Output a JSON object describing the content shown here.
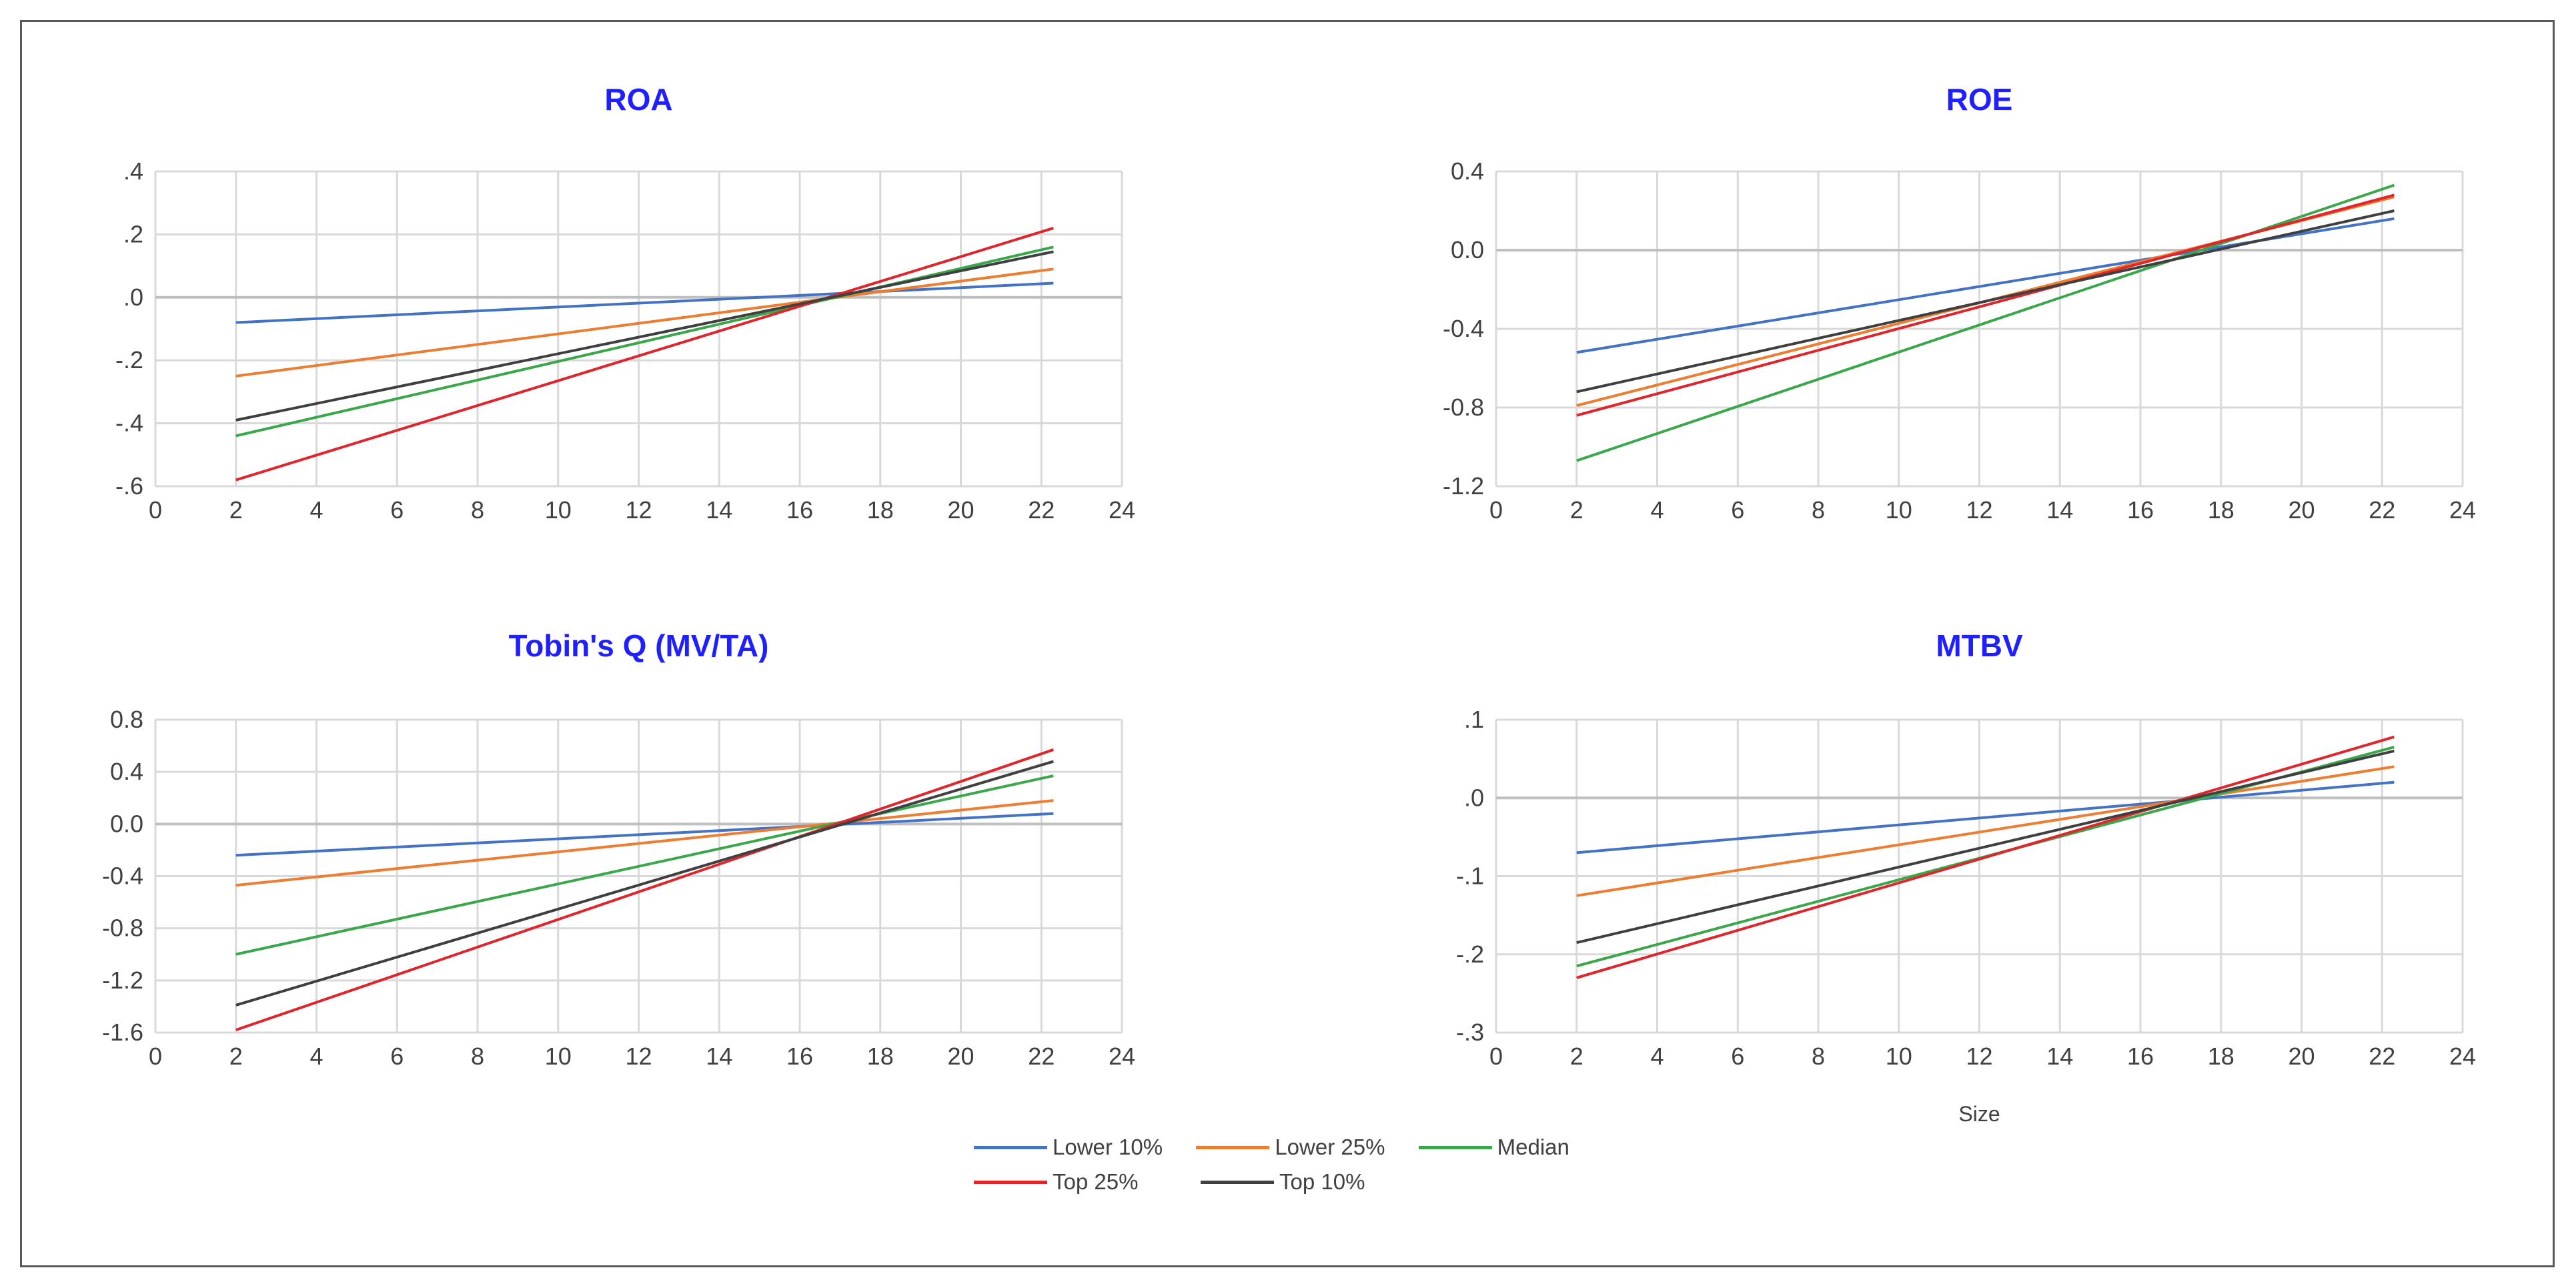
{
  "colors": {
    "title": "#1f1fff",
    "Lower 10%": "#4472c4",
    "Lower 25%": "#ed7d31",
    "Median": "#3aa84a",
    "Top 25%": "#e0262d",
    "Top 10%": "#404040"
  },
  "legend": [
    {
      "label": "Lower 10%"
    },
    {
      "label": "Lower 25%"
    },
    {
      "label": "Median"
    },
    {
      "label": "Top 25%"
    },
    {
      "label": "Top 10%"
    }
  ],
  "chart_data": [
    {
      "type": "line",
      "title": "ROA",
      "xlabel": "",
      "ylabel": "",
      "xlim": [
        0,
        24
      ],
      "xticks": [
        "0",
        "2",
        "4",
        "6",
        "8",
        "10",
        "12",
        "14",
        "16",
        "18",
        "20",
        "22",
        "24"
      ],
      "ylim": [
        -0.6,
        0.4
      ],
      "yticks": [
        {
          "v": 0.4,
          "label": ".4"
        },
        {
          "v": 0.2,
          "label": ".2"
        },
        {
          "v": 0.0,
          "label": ".0"
        },
        {
          "v": -0.2,
          "label": "-.2"
        },
        {
          "v": -0.4,
          "label": "-.4"
        },
        {
          "v": -0.6,
          "label": "-.6"
        }
      ],
      "grid": true,
      "series": [
        {
          "name": "Lower 10%",
          "x": [
            2,
            22.3
          ],
          "values": [
            -0.08,
            0.045
          ]
        },
        {
          "name": "Lower 25%",
          "x": [
            2,
            22.3
          ],
          "values": [
            -0.25,
            0.09
          ]
        },
        {
          "name": "Median",
          "x": [
            2,
            22.3
          ],
          "values": [
            -0.44,
            0.16
          ]
        },
        {
          "name": "Top 25%",
          "x": [
            2,
            22.3
          ],
          "values": [
            -0.58,
            0.22
          ]
        },
        {
          "name": "Top 10%",
          "x": [
            2,
            22.3
          ],
          "values": [
            -0.39,
            0.145
          ]
        }
      ]
    },
    {
      "type": "line",
      "title": "ROE",
      "xlabel": "",
      "ylabel": "",
      "xlim": [
        0,
        24
      ],
      "xticks": [
        "0",
        "2",
        "4",
        "6",
        "8",
        "10",
        "12",
        "14",
        "16",
        "18",
        "20",
        "22",
        "24"
      ],
      "ylim": [
        -1.2,
        0.4
      ],
      "yticks": [
        {
          "v": 0.4,
          "label": "0.4"
        },
        {
          "v": 0.0,
          "label": "0.0"
        },
        {
          "v": -0.4,
          "label": "-0.4"
        },
        {
          "v": -0.8,
          "label": "-0.8"
        },
        {
          "v": -1.2,
          "label": "-1.2"
        }
      ],
      "grid": true,
      "series": [
        {
          "name": "Lower 10%",
          "x": [
            2,
            22.3
          ],
          "values": [
            -0.52,
            0.16
          ]
        },
        {
          "name": "Lower 25%",
          "x": [
            2,
            22.3
          ],
          "values": [
            -0.79,
            0.27
          ]
        },
        {
          "name": "Median",
          "x": [
            2,
            22.3
          ],
          "values": [
            -1.07,
            0.33
          ]
        },
        {
          "name": "Top 25%",
          "x": [
            2,
            22.3
          ],
          "values": [
            -0.84,
            0.28
          ]
        },
        {
          "name": "Top 10%",
          "x": [
            2,
            22.3
          ],
          "values": [
            -0.72,
            0.2
          ]
        }
      ]
    },
    {
      "type": "line",
      "title": "Tobin's Q (MV/TA)",
      "xlabel": "",
      "ylabel": "",
      "xlim": [
        0,
        24
      ],
      "xticks": [
        "0",
        "2",
        "4",
        "6",
        "8",
        "10",
        "12",
        "14",
        "16",
        "18",
        "20",
        "22",
        "24"
      ],
      "ylim": [
        -1.6,
        0.8
      ],
      "yticks": [
        {
          "v": 0.8,
          "label": "0.8"
        },
        {
          "v": 0.4,
          "label": "0.4"
        },
        {
          "v": 0.0,
          "label": "0.0"
        },
        {
          "v": -0.4,
          "label": "-0.4"
        },
        {
          "v": -0.8,
          "label": "-0.8"
        },
        {
          "v": -1.2,
          "label": "-1.2"
        },
        {
          "v": -1.6,
          "label": "-1.6"
        }
      ],
      "grid": true,
      "series": [
        {
          "name": "Lower 10%",
          "x": [
            2,
            22.3
          ],
          "values": [
            -0.24,
            0.08
          ]
        },
        {
          "name": "Lower 25%",
          "x": [
            2,
            22.3
          ],
          "values": [
            -0.47,
            0.18
          ]
        },
        {
          "name": "Median",
          "x": [
            2,
            22.3
          ],
          "values": [
            -1.0,
            0.37
          ]
        },
        {
          "name": "Top 25%",
          "x": [
            2,
            22.3
          ],
          "values": [
            -1.58,
            0.57
          ]
        },
        {
          "name": "Top 10%",
          "x": [
            2,
            22.3
          ],
          "values": [
            -1.39,
            0.48
          ]
        }
      ]
    },
    {
      "type": "line",
      "title": "MTBV",
      "xlabel": "Size",
      "ylabel": "",
      "xlim": [
        0,
        24
      ],
      "xticks": [
        "0",
        "2",
        "4",
        "6",
        "8",
        "10",
        "12",
        "14",
        "16",
        "18",
        "20",
        "22",
        "24"
      ],
      "ylim": [
        -0.3,
        0.1
      ],
      "yticks": [
        {
          "v": 0.1,
          "label": ".1"
        },
        {
          "v": 0.0,
          "label": ".0"
        },
        {
          "v": -0.1,
          "label": "-.1"
        },
        {
          "v": -0.2,
          "label": "-.2"
        },
        {
          "v": -0.3,
          "label": "-.3"
        }
      ],
      "grid": true,
      "series": [
        {
          "name": "Lower 10%",
          "x": [
            2,
            22.3
          ],
          "values": [
            -0.07,
            0.02
          ]
        },
        {
          "name": "Lower 25%",
          "x": [
            2,
            22.3
          ],
          "values": [
            -0.125,
            0.04
          ]
        },
        {
          "name": "Median",
          "x": [
            2,
            22.3
          ],
          "values": [
            -0.215,
            0.065
          ]
        },
        {
          "name": "Top 25%",
          "x": [
            2,
            22.3
          ],
          "values": [
            -0.23,
            0.078
          ]
        },
        {
          "name": "Top 10%",
          "x": [
            2,
            22.3
          ],
          "values": [
            -0.185,
            0.06
          ]
        }
      ]
    }
  ]
}
